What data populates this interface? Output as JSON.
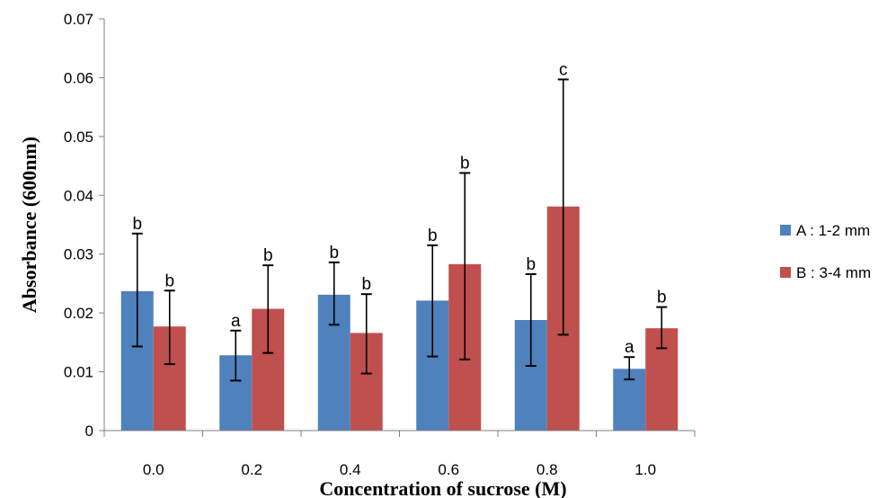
{
  "chart_data": {
    "type": "bar",
    "title": "",
    "xlabel": "Concentration of sucrose (M)",
    "ylabel": "Absorbance (600nm)",
    "ylim": [
      0,
      0.07
    ],
    "yticks": [
      "0",
      "0.01",
      "0.02",
      "0.03",
      "0.04",
      "0.05",
      "0.06",
      "0.07"
    ],
    "categories": [
      "0.0",
      "0.2",
      "0.4",
      "0.6",
      "0.8",
      "1.0"
    ],
    "grid": false,
    "legend_position": "right",
    "series": [
      {
        "name": "A : 1-2 mm",
        "color": "#4f81bd",
        "values": [
          0.0237,
          0.0128,
          0.0231,
          0.0221,
          0.0188,
          0.0105
        ],
        "err_low": [
          0.0143,
          0.0085,
          0.018,
          0.0126,
          0.011,
          0.0087
        ],
        "err_high": [
          0.0335,
          0.017,
          0.0286,
          0.0315,
          0.0266,
          0.0125
        ],
        "sig": [
          "b",
          "a",
          "b",
          "b",
          "b",
          "a"
        ]
      },
      {
        "name": "B : 3-4 mm",
        "color": "#c0504d",
        "values": [
          0.0177,
          0.0207,
          0.0166,
          0.0283,
          0.0381,
          0.0174
        ],
        "err_low": [
          0.0113,
          0.0132,
          0.0097,
          0.0121,
          0.0163,
          0.014
        ],
        "err_high": [
          0.0238,
          0.0281,
          0.0232,
          0.0438,
          0.0597,
          0.021
        ],
        "sig": [
          "b",
          "b",
          "b",
          "b",
          "c",
          "b"
        ]
      }
    ]
  }
}
